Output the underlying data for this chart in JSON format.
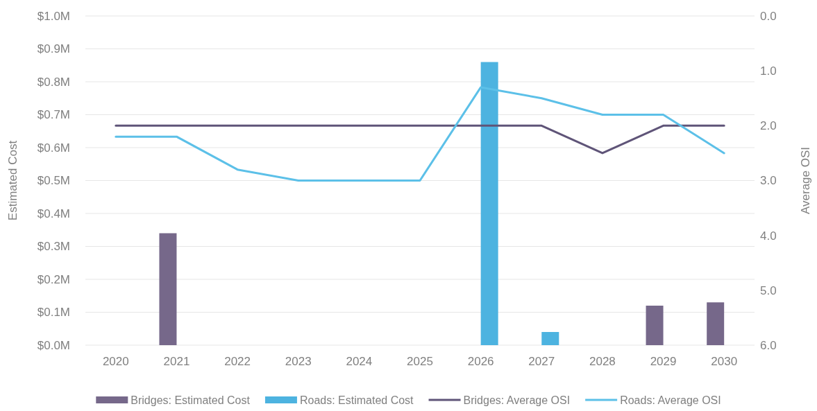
{
  "chart_data": {
    "type": "bar",
    "ylabel": "Estimated Cost",
    "y2label": "Average OSI",
    "categories": [
      "2020",
      "2021",
      "2022",
      "2023",
      "2024",
      "2025",
      "2026",
      "2027",
      "2028",
      "2029",
      "2030"
    ],
    "series": [
      {
        "name": "Bridges: Estimated Cost",
        "color": "#76688a",
        "values": [
          null,
          0.34,
          null,
          null,
          null,
          null,
          null,
          null,
          null,
          0.12,
          0.13
        ]
      },
      {
        "name": "Roads: Estimated Cost",
        "color": "#4db3e0",
        "values": [
          null,
          null,
          null,
          null,
          null,
          null,
          0.86,
          0.04,
          null,
          null,
          null
        ]
      },
      {
        "name": "Bridges: Average OSI",
        "type": "line",
        "axis": "y2",
        "color": "#5f5478",
        "values": [
          2.0,
          2.0,
          2.0,
          2.0,
          2.0,
          2.0,
          2.0,
          2.0,
          2.5,
          2.0,
          2.0
        ]
      },
      {
        "name": "Roads: Average OSI",
        "type": "line",
        "axis": "y2",
        "color": "#5cc0e8",
        "values": [
          2.2,
          2.2,
          2.8,
          3.0,
          3.0,
          3.0,
          1.3,
          1.5,
          1.8,
          1.8,
          2.5
        ]
      }
    ],
    "ylim": [
      0,
      1.0
    ],
    "yticks": [
      {
        "value": 0,
        "label": "$0.0M"
      },
      {
        "value": 0.1,
        "label": "$0.1M"
      },
      {
        "value": 0.2,
        "label": "$0.2M"
      },
      {
        "value": 0.3,
        "label": "$0.3M"
      },
      {
        "value": 0.4,
        "label": "$0.4M"
      },
      {
        "value": 0.5,
        "label": "$0.5M"
      },
      {
        "value": 0.6,
        "label": "$0.6M"
      },
      {
        "value": 0.7,
        "label": "$0.7M"
      },
      {
        "value": 0.8,
        "label": "$0.8M"
      },
      {
        "value": 0.9,
        "label": "$0.9M"
      },
      {
        "value": 1.0,
        "label": "$1.0M"
      }
    ],
    "y2lim": [
      6,
      0
    ],
    "y2ticks": [
      {
        "value": 0,
        "label": "0.0"
      },
      {
        "value": 1,
        "label": "1.0"
      },
      {
        "value": 2,
        "label": "2.0"
      },
      {
        "value": 3,
        "label": "3.0"
      },
      {
        "value": 4,
        "label": "4.0"
      },
      {
        "value": 5,
        "label": "5.0"
      },
      {
        "value": 6,
        "label": "6.0"
      }
    ],
    "grid": "y",
    "legend": "bottom",
    "line_style": "solid",
    "marker": "none"
  }
}
